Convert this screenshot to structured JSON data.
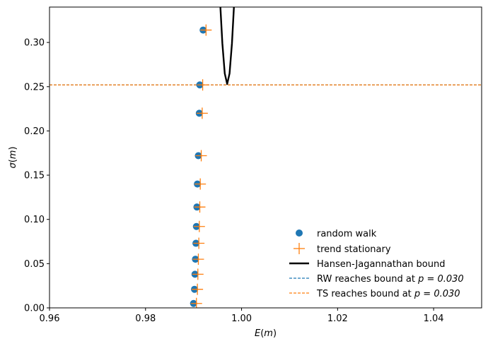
{
  "chart_data": {
    "type": "scatter",
    "xlabel": "E(m)",
    "ylabel": "σ(m)",
    "xlim": [
      0.96,
      1.05
    ],
    "ylim": [
      0.0,
      0.34
    ],
    "x_ticks": [
      "0.96",
      "0.98",
      "1.00",
      "1.02",
      "1.04"
    ],
    "y_ticks": [
      "0.00",
      "0.05",
      "0.10",
      "0.15",
      "0.20",
      "0.25",
      "0.30"
    ],
    "grid": false,
    "legend_position": "lower-right",
    "series": [
      {
        "name": "random walk",
        "marker": "circle",
        "color": "#1f77b4",
        "x": [
          0.99,
          0.9902,
          0.9903,
          0.9904,
          0.9905,
          0.9906,
          0.9907,
          0.9908,
          0.991,
          0.9912,
          0.9913,
          0.992
        ],
        "y": [
          0.005,
          0.021,
          0.038,
          0.055,
          0.073,
          0.092,
          0.114,
          0.14,
          0.172,
          0.22,
          0.252,
          0.314
        ]
      },
      {
        "name": "trend stationary",
        "marker": "plus",
        "color": "#ff7f0e",
        "x": [
          0.9906,
          0.9908,
          0.9909,
          0.991,
          0.9911,
          0.9912,
          0.9913,
          0.9914,
          0.9916,
          0.9918,
          0.9919,
          0.9926
        ],
        "y": [
          0.005,
          0.021,
          0.038,
          0.055,
          0.073,
          0.092,
          0.114,
          0.14,
          0.172,
          0.22,
          0.252,
          0.314
        ]
      }
    ],
    "hj_bound": {
      "name": "Hansen-Jagannathan bound",
      "color": "#000000",
      "x": [
        0.9955,
        0.996,
        0.9965,
        0.997,
        0.9975,
        0.998,
        0.9985
      ],
      "y": [
        0.349,
        0.299,
        0.265,
        0.253,
        0.265,
        0.299,
        0.349
      ]
    },
    "reference_lines": [
      {
        "name": "RW reaches bound at",
        "p_label": "p = 0.030",
        "y": 0.252,
        "color": "#1f77b4"
      },
      {
        "name": "TS reaches bound at",
        "p_label": "p = 0.030",
        "y": 0.252,
        "color": "#ff7f0e"
      }
    ]
  }
}
